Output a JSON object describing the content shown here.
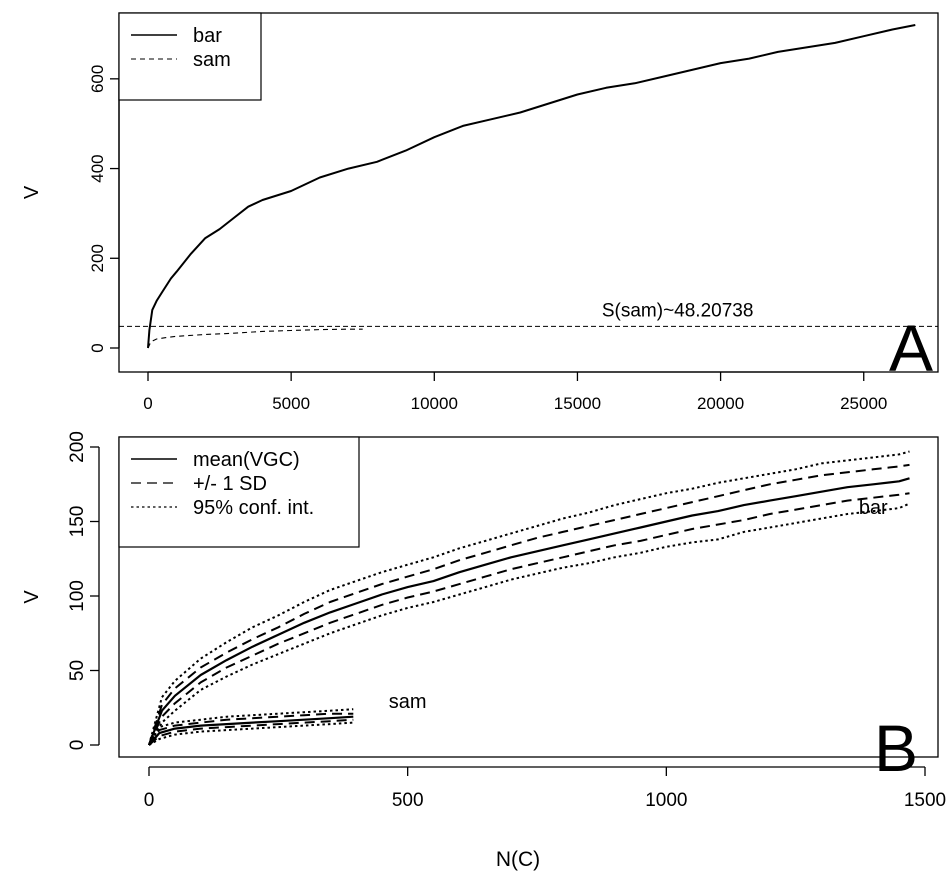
{
  "figure": {
    "xlabel": "N(C)"
  },
  "chart_data": [
    {
      "panel_label": "A",
      "type": "line",
      "xlabel": "",
      "ylabel": "V",
      "xlim": [
        0,
        27000
      ],
      "ylim": [
        0,
        720
      ],
      "xticks": [
        0,
        5000,
        10000,
        15000,
        20000,
        25000
      ],
      "yticks": [
        0,
        200,
        400,
        600
      ],
      "legend": {
        "position": "top-left",
        "entries": [
          "bar",
          "sam"
        ]
      },
      "series": [
        {
          "name": "bar",
          "style": "solid",
          "x": [
            0,
            50,
            150,
            300,
            500,
            800,
            1000,
            1500,
            2000,
            2500,
            3000,
            3500,
            4000,
            4500,
            5000,
            6000,
            7000,
            8000,
            9000,
            10000,
            11000,
            12000,
            13000,
            14000,
            15000,
            16000,
            17000,
            18000,
            19000,
            20000,
            21000,
            22000,
            23000,
            24000,
            25000,
            26000,
            26800
          ],
          "y": [
            0,
            40,
            85,
            105,
            125,
            155,
            170,
            210,
            245,
            265,
            290,
            315,
            330,
            340,
            350,
            380,
            400,
            415,
            440,
            470,
            495,
            510,
            525,
            545,
            565,
            580,
            590,
            605,
            620,
            635,
            645,
            660,
            670,
            680,
            695,
            710,
            720
          ]
        },
        {
          "name": "sam",
          "style": "dashed",
          "x": [
            0,
            100,
            300,
            600,
            1000,
            2000,
            3000,
            4000,
            5000,
            6000,
            7000,
            7500
          ],
          "y": [
            0,
            14,
            20,
            23,
            26,
            30,
            33,
            37,
            39,
            41,
            42,
            42
          ]
        }
      ],
      "annotations": [
        {
          "text": "S(sam)~48.20738",
          "x": 18500,
          "y": 70
        }
      ],
      "reference_lines": [
        {
          "orientation": "horizontal",
          "y": 48.20738,
          "style": "dashed"
        }
      ]
    },
    {
      "panel_label": "B",
      "type": "line",
      "xlabel": "N(C)",
      "ylabel": "V",
      "xlim": [
        0,
        1500
      ],
      "ylim": [
        0,
        200
      ],
      "xticks": [
        0,
        500,
        1000,
        1500
      ],
      "yticks": [
        0,
        50,
        100,
        150,
        200
      ],
      "legend": {
        "position": "top-left",
        "entries": [
          "mean(VGC)",
          "+/- 1 SD",
          "95% conf. int."
        ]
      },
      "annotations": [
        {
          "text": "bar",
          "x": 1400,
          "y": 155
        },
        {
          "text": "sam",
          "x": 500,
          "y": 25
        }
      ],
      "groups": [
        {
          "label": "bar",
          "x": [
            0,
            25,
            50,
            100,
            150,
            200,
            250,
            300,
            350,
            400,
            450,
            500,
            550,
            600,
            650,
            700,
            750,
            800,
            850,
            900,
            950,
            1000,
            1050,
            1100,
            1150,
            1200,
            1250,
            1300,
            1350,
            1400,
            1450,
            1470
          ],
          "mean": [
            0,
            23,
            33,
            47,
            57,
            66,
            74,
            82,
            89,
            95,
            101,
            106,
            110,
            116,
            121,
            126,
            130,
            134,
            138,
            142,
            146,
            150,
            154,
            157,
            161,
            164,
            167,
            170,
            173,
            175,
            177,
            179
          ],
          "sd_upper": [
            0,
            27,
            38,
            52,
            62,
            71,
            79,
            88,
            96,
            102,
            108,
            113,
            118,
            124,
            129,
            134,
            139,
            143,
            147,
            151,
            155,
            159,
            163,
            167,
            171,
            175,
            178,
            181,
            183,
            185,
            187,
            188
          ],
          "sd_lower": [
            0,
            19,
            28,
            42,
            52,
            60,
            68,
            75,
            82,
            88,
            94,
            99,
            103,
            108,
            113,
            118,
            122,
            126,
            130,
            134,
            137,
            141,
            145,
            148,
            151,
            155,
            158,
            161,
            164,
            166,
            168,
            169
          ],
          "ci_upper": [
            0,
            32,
            43,
            58,
            69,
            79,
            87,
            96,
            104,
            110,
            116,
            121,
            126,
            132,
            137,
            142,
            147,
            152,
            156,
            161,
            165,
            169,
            172,
            176,
            179,
            182,
            185,
            189,
            191,
            193,
            195,
            197
          ],
          "ci_lower": [
            0,
            15,
            23,
            37,
            46,
            54,
            61,
            68,
            75,
            81,
            87,
            92,
            96,
            101,
            106,
            111,
            115,
            119,
            122,
            126,
            129,
            133,
            136,
            138,
            143,
            146,
            149,
            152,
            155,
            157,
            159,
            162
          ]
        },
        {
          "label": "sam",
          "x": [
            0,
            20,
            50,
            100,
            150,
            200,
            250,
            300,
            350,
            395
          ],
          "mean": [
            0,
            8,
            11,
            13,
            14,
            15,
            16,
            17,
            18,
            19
          ],
          "sd_upper": [
            0,
            10,
            13,
            15,
            17,
            18,
            19,
            20,
            21,
            21
          ],
          "sd_lower": [
            0,
            6,
            9,
            11,
            12,
            13,
            14,
            15,
            16,
            17
          ],
          "ci_upper": [
            0,
            12,
            15,
            17,
            19,
            20,
            21,
            22,
            23,
            24
          ],
          "ci_lower": [
            0,
            4,
            7,
            9,
            10,
            11,
            12,
            13,
            14,
            15
          ]
        }
      ]
    }
  ]
}
